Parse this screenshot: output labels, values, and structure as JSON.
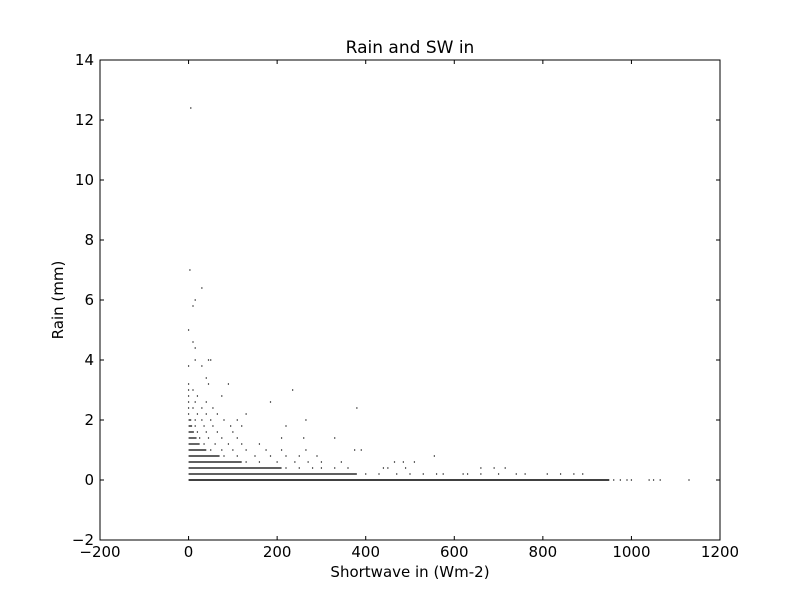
{
  "chart_data": {
    "type": "scatter",
    "title": "Rain and SW in",
    "xlabel": "Shortwave in (Wm-2)",
    "ylabel": "Rain (mm)",
    "xlim": [
      -200,
      1200
    ],
    "ylim": [
      -2,
      14
    ],
    "xticks": [
      -200,
      0,
      200,
      400,
      600,
      800,
      1000,
      1200
    ],
    "yticks": [
      -2,
      0,
      2,
      4,
      6,
      8,
      10,
      12,
      14
    ],
    "xtick_labels": [
      "−200",
      "0",
      "200",
      "400",
      "600",
      "800",
      "1000",
      "1200"
    ],
    "ytick_labels": [
      "−2",
      "0",
      "2",
      "4",
      "6",
      "8",
      "10",
      "12",
      "14"
    ],
    "grid": false,
    "legend": "none",
    "marker_color": "#000000",
    "bands": [
      {
        "y": 0.0,
        "x_min": 0,
        "x_max": 950
      },
      {
        "y": 0.2,
        "x_min": 0,
        "x_max": 380
      },
      {
        "y": 0.4,
        "x_min": 0,
        "x_max": 210
      },
      {
        "y": 0.6,
        "x_min": 0,
        "x_max": 120
      },
      {
        "y": 0.8,
        "x_min": 0,
        "x_max": 70
      },
      {
        "y": 1.0,
        "x_min": 0,
        "x_max": 40
      },
      {
        "y": 1.2,
        "x_min": 0,
        "x_max": 25
      },
      {
        "y": 1.4,
        "x_min": 0,
        "x_max": 18
      },
      {
        "y": 1.6,
        "x_min": 0,
        "x_max": 12
      },
      {
        "y": 1.8,
        "x_min": 0,
        "x_max": 8
      },
      {
        "y": 2.0,
        "x_min": 0,
        "x_max": 6
      }
    ],
    "points": [
      {
        "x": 960,
        "y": 0
      },
      {
        "x": 975,
        "y": 0
      },
      {
        "x": 990,
        "y": 0
      },
      {
        "x": 1000,
        "y": 0
      },
      {
        "x": 1040,
        "y": 0
      },
      {
        "x": 1050,
        "y": 0
      },
      {
        "x": 1065,
        "y": 0
      },
      {
        "x": 1130,
        "y": 0
      },
      {
        "x": 400,
        "y": 0.2
      },
      {
        "x": 430,
        "y": 0.2
      },
      {
        "x": 470,
        "y": 0.2
      },
      {
        "x": 500,
        "y": 0.2
      },
      {
        "x": 530,
        "y": 0.2
      },
      {
        "x": 560,
        "y": 0.2
      },
      {
        "x": 575,
        "y": 0.2
      },
      {
        "x": 620,
        "y": 0.2
      },
      {
        "x": 630,
        "y": 0.2
      },
      {
        "x": 660,
        "y": 0.2
      },
      {
        "x": 700,
        "y": 0.2
      },
      {
        "x": 740,
        "y": 0.2
      },
      {
        "x": 760,
        "y": 0.2
      },
      {
        "x": 810,
        "y": 0.2
      },
      {
        "x": 840,
        "y": 0.2
      },
      {
        "x": 870,
        "y": 0.2
      },
      {
        "x": 890,
        "y": 0.2
      },
      {
        "x": 220,
        "y": 0.4
      },
      {
        "x": 250,
        "y": 0.4
      },
      {
        "x": 280,
        "y": 0.4
      },
      {
        "x": 300,
        "y": 0.4
      },
      {
        "x": 330,
        "y": 0.4
      },
      {
        "x": 360,
        "y": 0.4
      },
      {
        "x": 440,
        "y": 0.4
      },
      {
        "x": 450,
        "y": 0.4
      },
      {
        "x": 490,
        "y": 0.4
      },
      {
        "x": 660,
        "y": 0.4
      },
      {
        "x": 690,
        "y": 0.4
      },
      {
        "x": 715,
        "y": 0.4
      },
      {
        "x": 130,
        "y": 0.6
      },
      {
        "x": 160,
        "y": 0.6
      },
      {
        "x": 200,
        "y": 0.6
      },
      {
        "x": 240,
        "y": 0.6
      },
      {
        "x": 270,
        "y": 0.6
      },
      {
        "x": 300,
        "y": 0.6
      },
      {
        "x": 345,
        "y": 0.6
      },
      {
        "x": 465,
        "y": 0.6
      },
      {
        "x": 485,
        "y": 0.6
      },
      {
        "x": 510,
        "y": 0.6
      },
      {
        "x": 80,
        "y": 0.8
      },
      {
        "x": 110,
        "y": 0.8
      },
      {
        "x": 150,
        "y": 0.8
      },
      {
        "x": 185,
        "y": 0.8
      },
      {
        "x": 220,
        "y": 0.8
      },
      {
        "x": 250,
        "y": 0.8
      },
      {
        "x": 290,
        "y": 0.8
      },
      {
        "x": 555,
        "y": 0.8
      },
      {
        "x": 50,
        "y": 1.0
      },
      {
        "x": 75,
        "y": 1.0
      },
      {
        "x": 100,
        "y": 1.0
      },
      {
        "x": 130,
        "y": 1.0
      },
      {
        "x": 175,
        "y": 1.0
      },
      {
        "x": 210,
        "y": 1.0
      },
      {
        "x": 265,
        "y": 1.0
      },
      {
        "x": 375,
        "y": 1.0
      },
      {
        "x": 390,
        "y": 1.0
      },
      {
        "x": 35,
        "y": 1.2
      },
      {
        "x": 60,
        "y": 1.2
      },
      {
        "x": 90,
        "y": 1.2
      },
      {
        "x": 120,
        "y": 1.2
      },
      {
        "x": 160,
        "y": 1.2
      },
      {
        "x": 25,
        "y": 1.4
      },
      {
        "x": 45,
        "y": 1.4
      },
      {
        "x": 75,
        "y": 1.4
      },
      {
        "x": 110,
        "y": 1.4
      },
      {
        "x": 210,
        "y": 1.4
      },
      {
        "x": 260,
        "y": 1.4
      },
      {
        "x": 330,
        "y": 1.4
      },
      {
        "x": 20,
        "y": 1.6
      },
      {
        "x": 40,
        "y": 1.6
      },
      {
        "x": 65,
        "y": 1.6
      },
      {
        "x": 100,
        "y": 1.6
      },
      {
        "x": 15,
        "y": 1.8
      },
      {
        "x": 35,
        "y": 1.8
      },
      {
        "x": 55,
        "y": 1.8
      },
      {
        "x": 95,
        "y": 1.8
      },
      {
        "x": 120,
        "y": 1.8
      },
      {
        "x": 220,
        "y": 1.8
      },
      {
        "x": 15,
        "y": 2.0
      },
      {
        "x": 30,
        "y": 2.0
      },
      {
        "x": 50,
        "y": 2.0
      },
      {
        "x": 80,
        "y": 2.0
      },
      {
        "x": 110,
        "y": 2.0
      },
      {
        "x": 265,
        "y": 2.0
      },
      {
        "x": 0,
        "y": 2.2
      },
      {
        "x": 20,
        "y": 2.2
      },
      {
        "x": 40,
        "y": 2.2
      },
      {
        "x": 65,
        "y": 2.2
      },
      {
        "x": 130,
        "y": 2.2
      },
      {
        "x": 0,
        "y": 2.4
      },
      {
        "x": 10,
        "y": 2.4
      },
      {
        "x": 30,
        "y": 2.4
      },
      {
        "x": 55,
        "y": 2.4
      },
      {
        "x": 380,
        "y": 2.4
      },
      {
        "x": 0,
        "y": 2.6
      },
      {
        "x": 15,
        "y": 2.6
      },
      {
        "x": 40,
        "y": 2.6
      },
      {
        "x": 185,
        "y": 2.6
      },
      {
        "x": 0,
        "y": 2.8
      },
      {
        "x": 20,
        "y": 2.8
      },
      {
        "x": 75,
        "y": 2.8
      },
      {
        "x": 0,
        "y": 3.0
      },
      {
        "x": 10,
        "y": 3.0
      },
      {
        "x": 235,
        "y": 3.0
      },
      {
        "x": 0,
        "y": 3.2
      },
      {
        "x": 45,
        "y": 3.2
      },
      {
        "x": 90,
        "y": 3.2
      },
      {
        "x": 40,
        "y": 3.4
      },
      {
        "x": 0,
        "y": 3.8
      },
      {
        "x": 30,
        "y": 3.8
      },
      {
        "x": 15,
        "y": 4.0
      },
      {
        "x": 45,
        "y": 4.0
      },
      {
        "x": 50,
        "y": 4.0
      },
      {
        "x": 15,
        "y": 4.4
      },
      {
        "x": 10,
        "y": 4.6
      },
      {
        "x": 0,
        "y": 5.0
      },
      {
        "x": 10,
        "y": 5.8
      },
      {
        "x": 15,
        "y": 6.0
      },
      {
        "x": 30,
        "y": 6.4
      },
      {
        "x": 3,
        "y": 7.0
      },
      {
        "x": 5,
        "y": 12.4
      }
    ]
  }
}
